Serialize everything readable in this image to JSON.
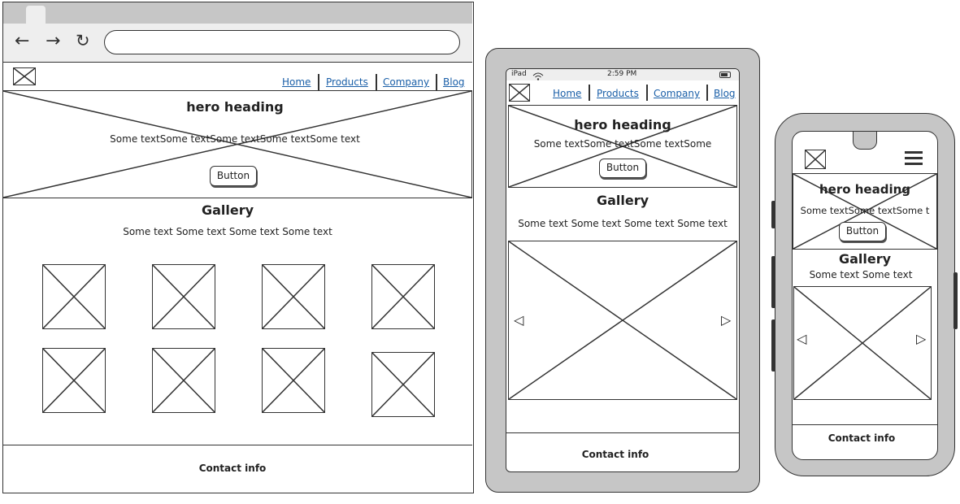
{
  "desktop": {
    "nav_links": [
      "Home",
      "Products",
      "Company",
      "Blog"
    ],
    "hero_heading": "hero heading",
    "hero_text": "Some textSome textSome textSome textSome text",
    "button_label": "Button",
    "gallery_heading": "Gallery",
    "gallery_text": "Some text Some text Some text Some text",
    "contact": "Contact info"
  },
  "tablet": {
    "status_device": "iPad",
    "status_time": "2:59 PM",
    "nav_links": [
      "Home",
      "Products",
      "Company",
      "Blog"
    ],
    "hero_heading": "hero heading",
    "hero_text": "Some textSome textSome textSome",
    "button_label": "Button",
    "gallery_heading": "Gallery",
    "gallery_text": "Some text Some text Some text Some text",
    "contact": "Contact info"
  },
  "phone": {
    "hero_heading": "hero heading",
    "hero_text": "Some textSome textSome t",
    "button_label": "Button",
    "gallery_heading": "Gallery",
    "gallery_text": "Some text Some text",
    "contact": "Contact info"
  },
  "icons": [
    "back-arrow-icon",
    "forward-arrow-icon",
    "reload-icon",
    "wifi-icon",
    "battery-icon",
    "hamburger-menu-icon",
    "carousel-left-arrow-icon",
    "carousel-right-arrow-icon",
    "image-placeholder-icon"
  ],
  "colors": {
    "frame": "#c6c6c6",
    "chrome": "#eeeeee",
    "ink": "#333333",
    "link": "#1a5fa8"
  }
}
